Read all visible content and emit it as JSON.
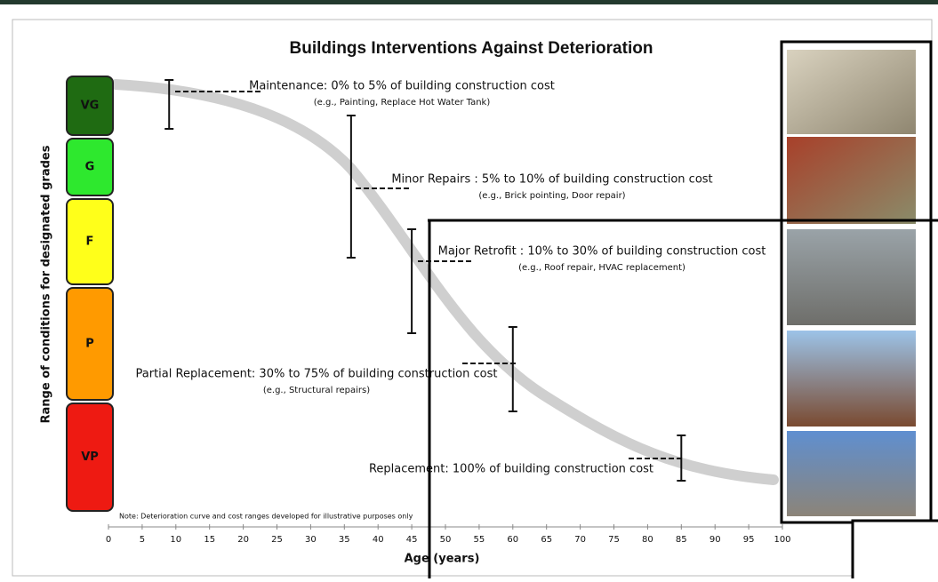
{
  "title": "Buildings Interventions Against Deterioration",
  "y_axis_label": "Range of conditions for designated grades",
  "x_axis_label": "Age (years)",
  "xlim": [
    0,
    100
  ],
  "xticks": [
    0,
    5,
    10,
    15,
    20,
    25,
    30,
    35,
    40,
    45,
    50,
    55,
    60,
    65,
    70,
    75,
    80,
    85,
    90,
    95,
    100
  ],
  "grades": [
    {
      "label": "VG",
      "color": "#1f6b12"
    },
    {
      "label": "G",
      "color": "#2ee82e"
    },
    {
      "label": "F",
      "color": "#ffff1a"
    },
    {
      "label": "P",
      "color": "#ff9a00"
    },
    {
      "label": "VP",
      "color": "#ee1a12"
    }
  ],
  "interventions": [
    {
      "label": "Maintenance: 0% to 5% of building construction cost",
      "example": "(e.g., Painting, Replace Hot Water Tank)",
      "age": 9
    },
    {
      "label": "Minor Repairs : 5% to 10% of building construction cost",
      "example": "(e.g., Brick pointing, Door repair)",
      "age": 36
    },
    {
      "label": "Major Retrofit : 10% to 30% of building construction cost",
      "example": "(e.g., Roof repair, HVAC replacement)",
      "age": 45
    },
    {
      "label": "Partial Replacement: 30% to 75% of building construction cost",
      "example": "(e.g., Structural repairs)",
      "age": 60
    },
    {
      "label": "Replacement: 100% of building construction cost",
      "age": 85
    }
  ],
  "note": "Note: Deterioration curve and cost ranges developed for illustrative purposes only"
}
